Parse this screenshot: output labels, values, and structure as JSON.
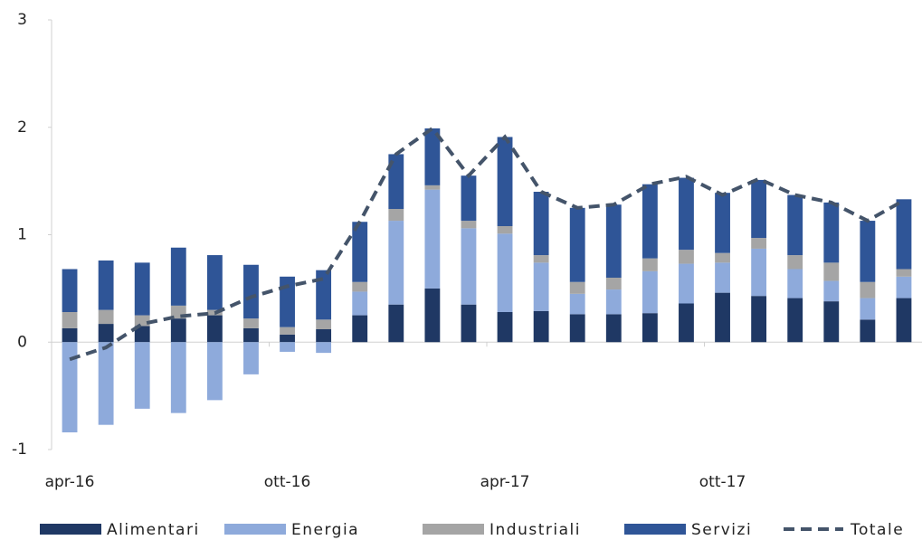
{
  "chart_data": {
    "type": "bar",
    "stacked": true,
    "categories": [
      "apr-16",
      null,
      null,
      null,
      null,
      null,
      "ott-16",
      null,
      null,
      null,
      null,
      null,
      "apr-17",
      null,
      null,
      null,
      null,
      null,
      "ott-17",
      null,
      null,
      null,
      null,
      null
    ],
    "ylim": [
      -1,
      3
    ],
    "yticks": [
      -1,
      0,
      1,
      2,
      3
    ],
    "grid": false,
    "legend": "bottom",
    "series": [
      {
        "name": "Alimentari",
        "color": "#1f3864",
        "values": [
          0.13,
          0.17,
          0.15,
          0.22,
          0.25,
          0.13,
          0.07,
          0.12,
          0.25,
          0.35,
          0.5,
          0.35,
          0.28,
          0.29,
          0.26,
          0.26,
          0.27,
          0.36,
          0.46,
          0.43,
          0.41,
          0.38,
          0.21,
          0.41
        ]
      },
      {
        "name": "Energia",
        "color": "#8eaadb",
        "values": [
          -0.84,
          -0.77,
          -0.62,
          -0.66,
          -0.54,
          -0.3,
          -0.09,
          -0.1,
          0.22,
          0.78,
          0.92,
          0.71,
          0.73,
          0.45,
          0.19,
          0.23,
          0.39,
          0.37,
          0.28,
          0.44,
          0.27,
          0.19,
          0.2,
          0.2
        ]
      },
      {
        "name": "Industriali",
        "color": "#a5a5a5",
        "values": [
          0.15,
          0.13,
          0.1,
          0.12,
          0.05,
          0.09,
          0.07,
          0.09,
          0.09,
          0.11,
          0.04,
          0.07,
          0.07,
          0.07,
          0.11,
          0.11,
          0.12,
          0.13,
          0.09,
          0.1,
          0.13,
          0.17,
          0.15,
          0.07
        ]
      },
      {
        "name": "Servizi",
        "color": "#2f5597",
        "values": [
          0.4,
          0.46,
          0.49,
          0.54,
          0.51,
          0.5,
          0.47,
          0.46,
          0.56,
          0.51,
          0.53,
          0.42,
          0.83,
          0.59,
          0.69,
          0.68,
          0.69,
          0.67,
          0.56,
          0.54,
          0.56,
          0.56,
          0.57,
          0.65
        ]
      },
      {
        "name": "Totale",
        "color": "#44546a",
        "type": "line",
        "dashed": true,
        "values": [
          -0.16,
          -0.05,
          0.17,
          0.24,
          0.27,
          0.42,
          0.52,
          0.59,
          1.12,
          1.75,
          1.99,
          1.55,
          1.91,
          1.4,
          1.25,
          1.28,
          1.47,
          1.54,
          1.37,
          1.52,
          1.37,
          1.3,
          1.13,
          1.32
        ]
      }
    ]
  }
}
